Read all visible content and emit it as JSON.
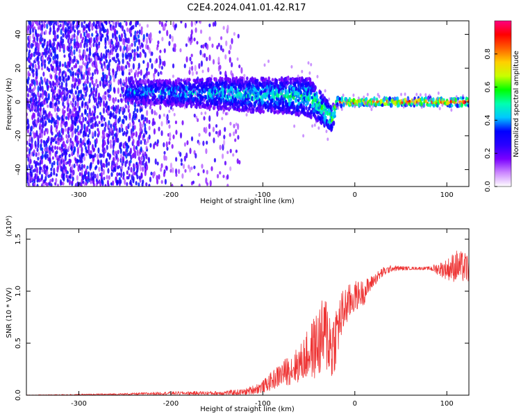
{
  "title": "C2E4.2024.041.01.42.R17",
  "chart_data": [
    {
      "type": "heatmap",
      "name": "spectrogram",
      "xlabel": "Height of straight line (km)",
      "ylabel": "Frequency (Hz)",
      "xlim": [
        -357,
        124
      ],
      "ylim": [
        -50,
        48
      ],
      "x_ticks": [
        -300,
        -200,
        -100,
        0,
        100
      ],
      "x_tick_labels": [
        "-300",
        "-200",
        "-100",
        "0",
        "100"
      ],
      "y_ticks": [
        40,
        20,
        0,
        -20,
        -40
      ],
      "y_tick_labels": [
        "40",
        "20",
        "0",
        "-20",
        "-40"
      ],
      "colorbar": {
        "label": "Normalized spectral amplitude",
        "range": [
          0,
          1
        ],
        "ticks": [
          0.0,
          0.2,
          0.4,
          0.6,
          0.8
        ],
        "tick_labels": [
          "0.0",
          "0.2",
          "0.4",
          "0.6",
          "0.8"
        ],
        "colors": [
          "#ffffff",
          "#cc88ff",
          "#7a00ff",
          "#2a00ff",
          "#0000ff",
          "#00c8ff",
          "#00ffb0",
          "#00ff00",
          "#c8ff00",
          "#ffd000",
          "#ff6000",
          "#ff0000",
          "#ff0080"
        ]
      },
      "signal_profile": [
        {
          "x": -357,
          "center": 0,
          "width": 95,
          "amplitude": 0.3,
          "density": 0.95
        },
        {
          "x": -230,
          "center": 0,
          "width": 95,
          "amplitude": 0.3,
          "density": 0.6
        },
        {
          "x": -220,
          "center": 0,
          "width": 90,
          "amplitude": 0.25,
          "density": 0.25
        },
        {
          "x": -150,
          "center": 0,
          "width": 90,
          "amplitude": 0.22,
          "density": 0.18
        },
        {
          "x": -120,
          "center": 0,
          "width": 80,
          "amplitude": 0.18,
          "density": 0.05
        },
        {
          "x": -250,
          "center": 6,
          "width": 12,
          "amplitude": 0.4,
          "density": 0.9
        },
        {
          "x": -150,
          "center": 5,
          "width": 18,
          "amplitude": 0.45,
          "density": 0.9
        },
        {
          "x": -50,
          "center": 3,
          "width": 22,
          "amplitude": 0.5,
          "density": 0.95
        },
        {
          "x": -25,
          "center": -10,
          "width": 14,
          "amplitude": 0.6,
          "density": 0.9
        },
        {
          "x": -20,
          "center": 0,
          "width": 5,
          "amplitude": 0.75,
          "density": 1
        },
        {
          "x": 0,
          "center": 0,
          "width": 4,
          "amplitude": 0.85,
          "density": 1
        },
        {
          "x": 124,
          "center": 0,
          "width": 5,
          "amplitude": 0.9,
          "density": 1
        }
      ]
    },
    {
      "type": "line",
      "name": "snr",
      "xlabel": "Height of straight line (km)",
      "ylabel": "SNR (10 * V/V)",
      "y_scale_label": "(x10⁴)",
      "xlim": [
        -357,
        124
      ],
      "ylim": [
        0,
        1.6
      ],
      "x_ticks": [
        -300,
        -200,
        -100,
        0,
        100
      ],
      "x_tick_labels": [
        "-300",
        "-200",
        "-100",
        "0",
        "100"
      ],
      "y_ticks": [
        0.0,
        0.5,
        1.0,
        1.5
      ],
      "y_tick_labels": [
        "0.0",
        "0.5",
        "1.0",
        "1.5"
      ],
      "color": "#ee3333",
      "series": [
        {
          "name": "SNR",
          "x": [
            -357,
            -300,
            -250,
            -200,
            -150,
            -120,
            -100,
            -80,
            -60,
            -50,
            -40,
            -30,
            -25,
            -20,
            -15,
            -10,
            0,
            10,
            20,
            30,
            40,
            60,
            80,
            100,
            110,
            124
          ],
          "y": [
            0.0,
            0.005,
            0.01,
            0.02,
            0.02,
            0.03,
            0.08,
            0.2,
            0.3,
            0.4,
            0.5,
            0.6,
            0.45,
            0.6,
            0.75,
            0.85,
            0.95,
            0.99,
            1.1,
            1.18,
            1.22,
            1.22,
            1.22,
            1.21,
            1.24,
            1.22
          ],
          "noise": [
            0.003,
            0.006,
            0.01,
            0.015,
            0.02,
            0.03,
            0.06,
            0.12,
            0.18,
            0.25,
            0.35,
            0.4,
            0.35,
            0.3,
            0.25,
            0.2,
            0.15,
            0.12,
            0.06,
            0.05,
            0.03,
            0.015,
            0.015,
            0.1,
            0.16,
            0.14
          ]
        }
      ]
    }
  ]
}
